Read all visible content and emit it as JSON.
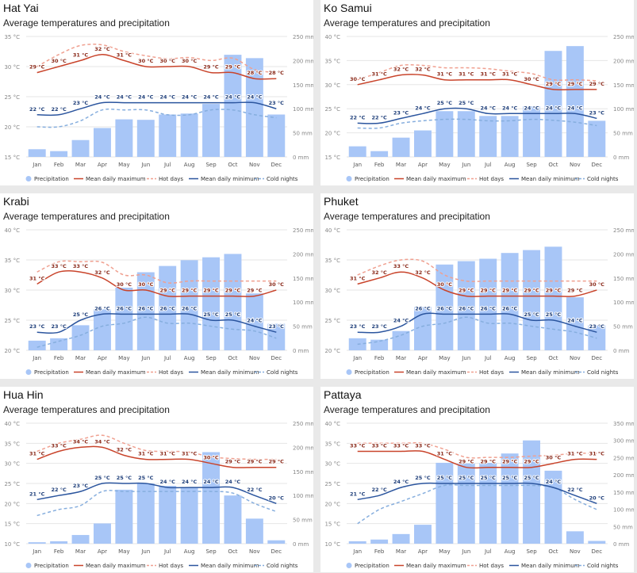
{
  "legend": {
    "precipitation": "Precipitation",
    "mean_max": "Mean daily maximum",
    "hot_days": "Hot days",
    "mean_min": "Mean daily minimum",
    "cold_nights": "Cold nights"
  },
  "colors": {
    "bar": "#a8c6f7",
    "mean_max": "#c9442b",
    "hot_days": "#f0a090",
    "mean_min": "#2b559e",
    "cold_nights": "#86aede",
    "grid": "#e6e6e6",
    "axis_text": "#888888"
  },
  "chart_data": [
    {
      "type": "bar+line",
      "title": "Hat Yai",
      "subtitle": "Average temperatures and precipitation",
      "categories": [
        "Jan",
        "Feb",
        "Mar",
        "Apr",
        "May",
        "Jun",
        "Jul",
        "Aug",
        "Sep",
        "Oct",
        "Nov",
        "Dec"
      ],
      "temp_ticks": [
        15,
        20,
        25,
        30,
        35
      ],
      "temp_unit": "°C",
      "precip_ticks": [
        0,
        50,
        100,
        150,
        200,
        250
      ],
      "precip_unit": "mm",
      "precipitation": [
        16,
        12,
        35,
        60,
        78,
        77,
        88,
        90,
        110,
        212,
        205,
        88
      ],
      "mean_max": [
        29,
        30,
        31,
        32,
        31,
        30,
        30,
        30,
        29,
        29,
        28,
        28
      ],
      "hot_days": [
        30,
        32,
        33.5,
        33.6,
        32.5,
        31.8,
        31.3,
        31.5,
        31,
        31.4,
        29.5,
        29
      ],
      "mean_min": [
        22,
        22,
        23,
        24,
        24,
        24,
        24,
        24,
        24,
        24,
        24,
        23
      ],
      "cold_nights": [
        20,
        20,
        21,
        22.8,
        22.8,
        22.8,
        22,
        22,
        22.8,
        22.8,
        22,
        21.5
      ],
      "mean_max_labels": [
        "29 °C",
        "30 °C",
        "31 °C",
        "32 °C",
        "31 °C",
        "30 °C",
        "30 °C",
        "30 °C",
        "29 °C",
        "29 °C",
        "28 °C",
        "28 °C"
      ],
      "mean_min_labels": [
        "22 °C",
        "22 °C",
        "23 °C",
        "24 °C",
        "24 °C",
        "24 °C",
        "24 °C",
        "24 °C",
        "24 °C",
        "24 °C",
        "24 °C",
        "23 °C"
      ]
    },
    {
      "type": "bar+line",
      "title": "Ko Samui",
      "subtitle": "Average temperatures and precipitation",
      "categories": [
        "Jan",
        "Feb",
        "Mar",
        "Apr",
        "May",
        "Jun",
        "Jul",
        "Aug",
        "Sep",
        "Oct",
        "Nov",
        "Dec"
      ],
      "temp_ticks": [
        15,
        20,
        25,
        30,
        35,
        40
      ],
      "temp_unit": "°C",
      "precip_ticks": [
        0,
        50,
        100,
        150,
        200,
        250
      ],
      "precip_unit": "mm",
      "precipitation": [
        22,
        12,
        40,
        55,
        95,
        95,
        85,
        85,
        105,
        220,
        230,
        75
      ],
      "mean_max": [
        30,
        31,
        32,
        32,
        31,
        31,
        31,
        31,
        30,
        29,
        29,
        29
      ],
      "hot_days": [
        31,
        32.5,
        34,
        34,
        33.5,
        33.5,
        33.3,
        32.8,
        32.3,
        31,
        31,
        30.8
      ],
      "mean_min": [
        22,
        22,
        23,
        24,
        25,
        25,
        24,
        24,
        24,
        24,
        24,
        23
      ],
      "cold_nights": [
        21,
        21,
        22,
        22.5,
        22.8,
        22.8,
        22.5,
        22.5,
        22.8,
        22.6,
        22.2,
        21.5
      ],
      "mean_max_labels": [
        "30 °C",
        "31 °C",
        "32 °C",
        "32 °C",
        "31 °C",
        "31 °C",
        "31 °C",
        "31 °C",
        "30 °C",
        "29 °C",
        "29 °C",
        "29 °C"
      ],
      "mean_min_labels": [
        "22 °C",
        "22 °C",
        "23 °C",
        "24 °C",
        "25 °C",
        "25 °C",
        "24 °C",
        "24 °C",
        "24 °C",
        "24 °C",
        "24 °C",
        "23 °C"
      ]
    },
    {
      "type": "bar+line",
      "title": "Krabi",
      "subtitle": "Average temperatures and precipitation",
      "categories": [
        "Jan",
        "Feb",
        "Mar",
        "Apr",
        "May",
        "Jun",
        "Jul",
        "Aug",
        "Sep",
        "Oct",
        "Nov",
        "Dec"
      ],
      "temp_ticks": [
        20,
        25,
        30,
        35,
        40
      ],
      "temp_unit": "°C",
      "precip_ticks": [
        0,
        50,
        100,
        150,
        200,
        250
      ],
      "precip_unit": "mm",
      "precipitation": [
        20,
        25,
        52,
        85,
        130,
        162,
        175,
        187,
        193,
        200,
        118,
        55
      ],
      "mean_max": [
        31,
        33,
        33,
        32,
        30,
        30,
        29,
        29,
        29,
        29,
        29,
        30
      ],
      "hot_days": [
        33,
        34.7,
        34.7,
        34.6,
        32.5,
        32.5,
        31.2,
        31.5,
        31.5,
        31.5,
        31.5,
        31.5
      ],
      "mean_min": [
        23,
        23,
        25,
        26,
        26,
        26,
        26,
        26,
        25,
        25,
        24,
        23
      ],
      "cold_nights": [
        20.5,
        21.5,
        22.5,
        24,
        24.5,
        25.5,
        24.5,
        24.5,
        24,
        23.5,
        23.2,
        22
      ],
      "mean_max_labels": [
        "31 °C",
        "33 °C",
        "33 °C",
        "32 °C",
        "30 °C",
        "30 °C",
        "29 °C",
        "29 °C",
        "29 °C",
        "29 °C",
        "29 °C",
        "30 °C"
      ],
      "mean_min_labels": [
        "23 °C",
        "23 °C",
        "25 °C",
        "26 °C",
        "26 °C",
        "26 °C",
        "26 °C",
        "26 °C",
        "25 °C",
        "25 °C",
        "24 °C",
        "23 °C"
      ]
    },
    {
      "type": "bar+line",
      "title": "Phuket",
      "subtitle": "Average temperatures and precipitation",
      "categories": [
        "Jan",
        "Feb",
        "Mar",
        "Apr",
        "May",
        "Jun",
        "Jul",
        "Aug",
        "Sep",
        "Oct",
        "Nov",
        "Dec"
      ],
      "temp_ticks": [
        20,
        25,
        30,
        35,
        40
      ],
      "temp_unit": "°C",
      "precip_ticks": [
        0,
        50,
        100,
        150,
        200,
        250
      ],
      "precip_unit": "mm",
      "precipitation": [
        25,
        22,
        40,
        90,
        178,
        185,
        190,
        202,
        208,
        215,
        110,
        52
      ],
      "mean_max": [
        31,
        32,
        33,
        32,
        30,
        29,
        29,
        29,
        29,
        29,
        29,
        30
      ],
      "hot_days": [
        32.5,
        34,
        35,
        34.8,
        32.5,
        31.5,
        31.5,
        31.5,
        31.5,
        31.5,
        31.5,
        31.5
      ],
      "mean_min": [
        23,
        23,
        24,
        26,
        26,
        26,
        26,
        26,
        25,
        25,
        24,
        23
      ],
      "cold_nights": [
        21,
        21.5,
        22.5,
        24,
        24.5,
        25.5,
        24.5,
        24.5,
        24,
        23.5,
        23,
        22
      ],
      "mean_max_labels": [
        "31 °C",
        "32 °C",
        "33 °C",
        "32 °C",
        "30 °C",
        "29 °C",
        "29 °C",
        "29 °C",
        "29 °C",
        "29 °C",
        "29 °C",
        "30 °C"
      ],
      "mean_min_labels": [
        "23 °C",
        "23 °C",
        "24 °C",
        "26 °C",
        "26 °C",
        "26 °C",
        "26 °C",
        "26 °C",
        "25 °C",
        "25 °C",
        "24 °C",
        "23 °C"
      ]
    },
    {
      "type": "bar+line",
      "title": "Hua Hin",
      "subtitle": "Average temperatures and precipitation",
      "categories": [
        "Jan",
        "Feb",
        "Mar",
        "Apr",
        "May",
        "Jun",
        "Jul",
        "Aug",
        "Sep",
        "Oct",
        "Nov",
        "Dec"
      ],
      "temp_ticks": [
        10,
        15,
        20,
        25,
        30,
        35,
        40
      ],
      "temp_unit": "°C",
      "precip_ticks": [
        0,
        50,
        100,
        150,
        200,
        250
      ],
      "precip_unit": "mm",
      "precipitation": [
        3,
        5,
        18,
        42,
        112,
        125,
        120,
        117,
        190,
        100,
        52,
        7
      ],
      "mean_max": [
        31,
        33,
        34,
        34,
        32,
        31,
        31,
        31,
        30,
        29,
        29,
        29
      ],
      "hot_days": [
        33,
        35,
        36,
        37,
        35,
        33.2,
        33,
        32.8,
        31.6,
        31.2,
        31,
        31
      ],
      "mean_min": [
        21,
        22,
        23,
        25,
        25,
        25,
        24,
        24,
        24,
        24,
        22,
        20
      ],
      "cold_nights": [
        17,
        18.5,
        19.5,
        23,
        23,
        23,
        23,
        23,
        23,
        22.6,
        20,
        18
      ],
      "mean_max_labels": [
        "31 °C",
        "33 °C",
        "34 °C",
        "34 °C",
        "32 °C",
        "31 °C",
        "31 °C",
        "31 °C",
        "30 °C",
        "29 °C",
        "29 °C",
        "29 °C"
      ],
      "mean_min_labels": [
        "21 °C",
        "22 °C",
        "23 °C",
        "25 °C",
        "25 °C",
        "25 °C",
        "24 °C",
        "24 °C",
        "24 °C",
        "24 °C",
        "22 °C",
        "20 °C"
      ]
    },
    {
      "type": "bar+line",
      "title": "Pattaya",
      "subtitle": "Average temperatures and precipitation",
      "categories": [
        "Jan",
        "Feb",
        "Mar",
        "Apr",
        "May",
        "Jun",
        "Jul",
        "Aug",
        "Sep",
        "Oct",
        "Nov",
        "Dec"
      ],
      "temp_ticks": [
        10,
        15,
        20,
        25,
        30,
        35,
        40
      ],
      "temp_unit": "°C",
      "precip_ticks": [
        0,
        50,
        100,
        150,
        200,
        250,
        300,
        350
      ],
      "precip_unit": "mm",
      "precipitation": [
        7,
        12,
        28,
        55,
        235,
        233,
        235,
        262,
        300,
        212,
        36,
        8
      ],
      "mean_max": [
        33,
        33,
        33,
        33,
        31,
        29,
        29,
        29,
        29,
        30,
        31,
        31
      ],
      "hot_days": [
        35,
        35,
        35,
        35,
        33.5,
        31.5,
        31.5,
        31.5,
        31.8,
        32,
        32.5,
        32.5
      ],
      "mean_min": [
        21,
        22,
        24,
        25,
        25,
        25,
        25,
        25,
        25,
        24,
        22,
        20
      ],
      "cold_nights": [
        15,
        18.5,
        20.5,
        22.5,
        24.5,
        24.5,
        24.5,
        24.5,
        24.5,
        24,
        21,
        18.5
      ],
      "mean_max_labels": [
        "33 °C",
        "33 °C",
        "33 °C",
        "33 °C",
        "31 °C",
        "29 °C",
        "29 °C",
        "29 °C",
        "29 °C",
        "30 °C",
        "31 °C",
        "31 °C"
      ],
      "mean_min_labels": [
        "21 °C",
        "22 °C",
        "24 °C",
        "25 °C",
        "25 °C",
        "25 °C",
        "25 °C",
        "25 °C",
        "25 °C",
        "24 °C",
        "22 °C",
        "20 °C"
      ]
    }
  ]
}
